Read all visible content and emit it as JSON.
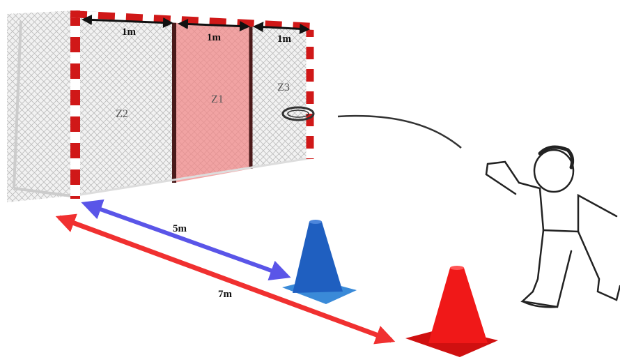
{
  "goal": {
    "widths": [
      "1m",
      "1m",
      "1m"
    ],
    "zones": [
      "Z2",
      "Z1",
      "Z3"
    ]
  },
  "distances": [
    "5m",
    "7m"
  ]
}
